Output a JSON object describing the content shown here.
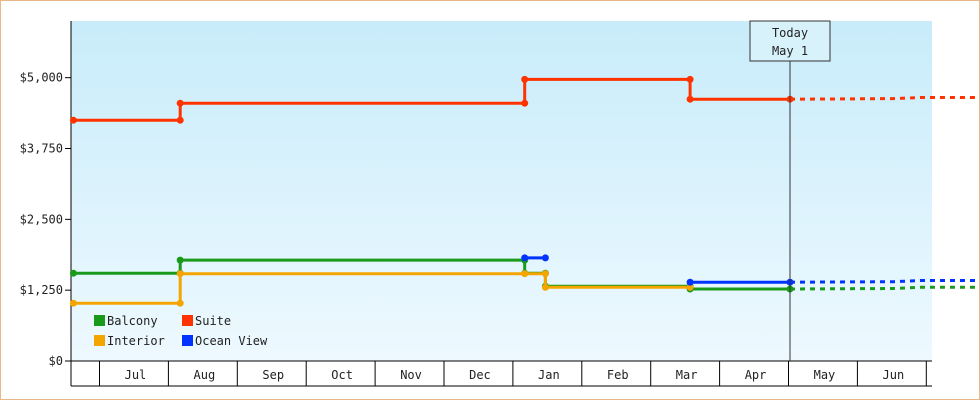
{
  "chart_data": {
    "type": "line",
    "title": "",
    "xlabel": "",
    "ylabel": "",
    "ylim": [
      0,
      6000
    ],
    "yticks": [
      "$0",
      "$1,250",
      "$2,500",
      "$3,750",
      "$5,000"
    ],
    "ytick_values": [
      0,
      1250,
      2500,
      3750,
      5000
    ],
    "months": [
      "Jul",
      "Aug",
      "Sep",
      "Oct",
      "Nov",
      "Dec",
      "Jan",
      "Feb",
      "Mar",
      "Apr",
      "May",
      "Jun"
    ],
    "today": {
      "line1": "Today",
      "line2": "May 1",
      "x": 10.0
    },
    "grid": false,
    "step": true,
    "legend": {
      "placement": "bottom-left"
    },
    "colors": {
      "background_top": "#c8ecfa",
      "background_bottom": "#eef9ff",
      "axis": "#000000"
    },
    "series": [
      {
        "name": "Suite",
        "color": "#ff3300",
        "points": [
          [
            -0.4,
            4250
          ],
          [
            1.15,
            4250
          ],
          [
            1.15,
            4550
          ],
          [
            6.15,
            4550
          ],
          [
            6.15,
            4970
          ],
          [
            8.55,
            4970
          ],
          [
            8.55,
            4620
          ],
          [
            10.0,
            4620
          ]
        ],
        "forecast": [
          [
            10.0,
            4620
          ],
          [
            11.5,
            4630
          ],
          [
            11.9,
            4650
          ],
          [
            12.75,
            4650
          ]
        ]
      },
      {
        "name": "Balcony",
        "color": "#1a9a1a",
        "points": [
          [
            -0.4,
            1550
          ],
          [
            1.15,
            1550
          ],
          [
            1.15,
            1780
          ],
          [
            6.15,
            1780
          ],
          [
            6.15,
            1550
          ],
          [
            6.45,
            1550
          ],
          [
            6.45,
            1320
          ],
          [
            8.55,
            1320
          ],
          [
            8.55,
            1270
          ],
          [
            10.0,
            1270
          ]
        ],
        "forecast": [
          [
            10.0,
            1270
          ],
          [
            11.5,
            1280
          ],
          [
            11.9,
            1300
          ],
          [
            12.75,
            1300
          ]
        ]
      },
      {
        "name": "Interior",
        "color": "#f5a500",
        "points": [
          [
            -0.4,
            1020
          ],
          [
            1.15,
            1020
          ],
          [
            1.15,
            1540
          ],
          [
            6.15,
            1540
          ],
          [
            6.45,
            1540
          ],
          [
            6.45,
            1300
          ],
          [
            8.55,
            1300
          ]
        ],
        "forecast": []
      },
      {
        "name": "Ocean View",
        "color": "#0033ff",
        "points": [
          [
            6.15,
            1820
          ],
          [
            6.45,
            1820
          ],
          [
            6.45,
            1820
          ],
          [
            8.55,
            1390
          ],
          [
            10.0,
            1390
          ]
        ],
        "segments": [
          [
            [
              6.15,
              1820
            ],
            [
              6.45,
              1820
            ]
          ],
          [
            [
              8.55,
              1390
            ],
            [
              10.0,
              1390
            ]
          ]
        ],
        "forecast": [
          [
            10.0,
            1390
          ],
          [
            11.5,
            1400
          ],
          [
            11.9,
            1420
          ],
          [
            12.75,
            1420
          ]
        ]
      }
    ]
  }
}
